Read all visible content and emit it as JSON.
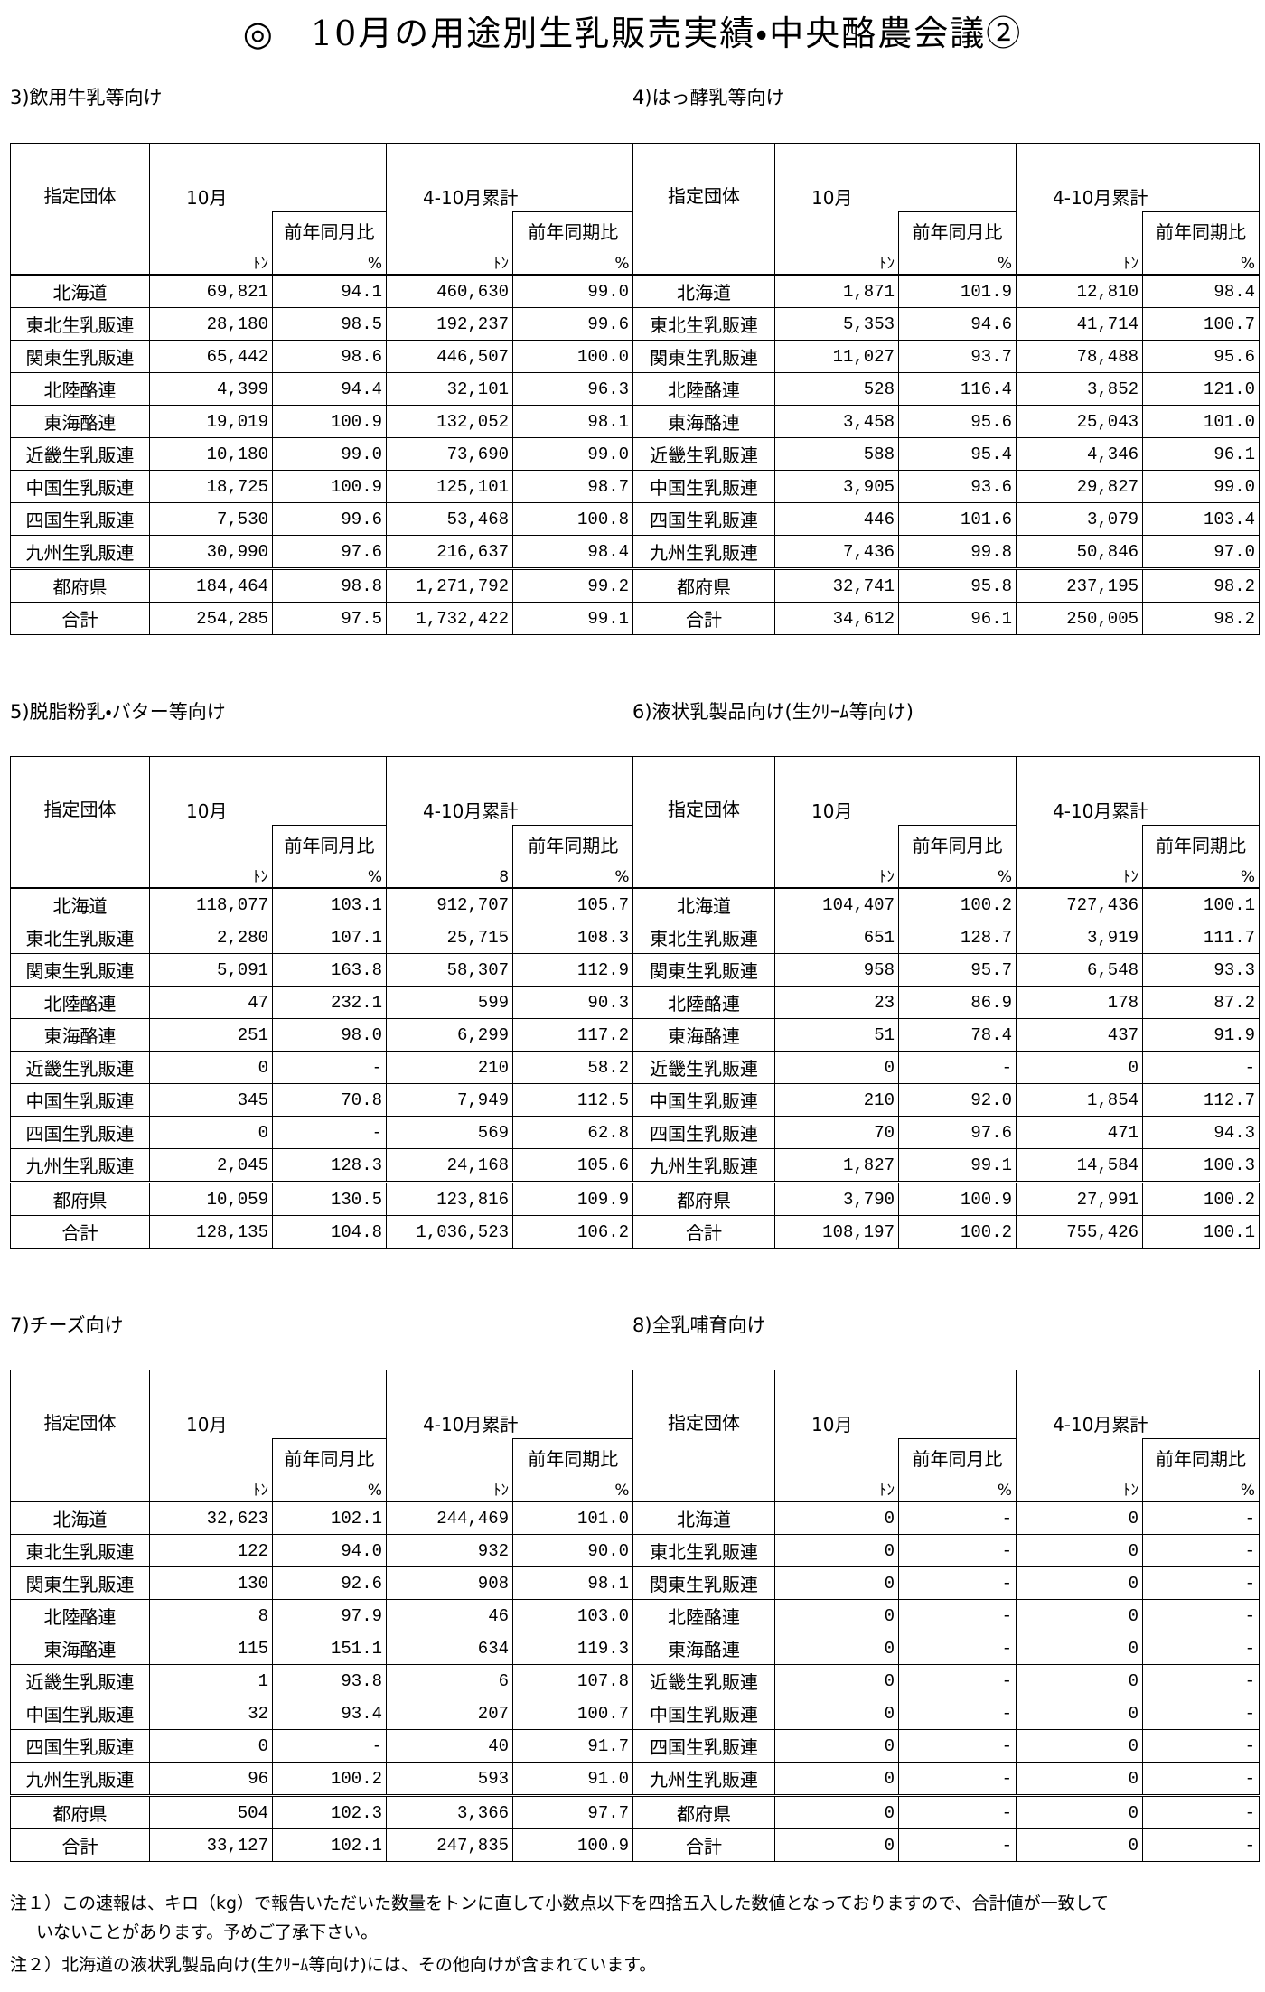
{
  "title": "◎　10月の用途別生乳販売実績・中央酪農会議②",
  "sections": [
    {
      "label": "3)飲用牛乳等向け",
      "header": [
        "指定団体",
        "10月",
        "4-10月累計",
        "前年同月比",
        "前年同期比"
      ],
      "units": [
        "ﾄﾝ",
        "%",
        "ﾄﾝ",
        "%"
      ],
      "rows": [
        [
          "北海道",
          "69,821",
          "94.1",
          "460,630",
          "99.0"
        ],
        [
          "東北生乳販連",
          "28,180",
          "98.5",
          "192,237",
          "99.6"
        ],
        [
          "関東生乳販連",
          "65,442",
          "98.6",
          "446,507",
          "100.0"
        ],
        [
          "北陸酪連",
          "4,399",
          "94.4",
          "32,101",
          "96.3"
        ],
        [
          "東海酪連",
          "19,019",
          "100.9",
          "132,052",
          "98.1"
        ],
        [
          "近畿生乳販連",
          "10,180",
          "99.0",
          "73,690",
          "99.0"
        ],
        [
          "中国生乳販連",
          "18,725",
          "100.9",
          "125,101",
          "98.7"
        ],
        [
          "四国生乳販連",
          "7,530",
          "99.6",
          "53,468",
          "100.8"
        ],
        [
          "九州生乳販連",
          "30,990",
          "97.6",
          "216,637",
          "98.4"
        ],
        [
          "都府県",
          "184,464",
          "98.8",
          "1,271,792",
          "99.2"
        ],
        [
          "合計",
          "254,285",
          "97.5",
          "1,732,422",
          "99.1"
        ]
      ]
    },
    {
      "label": "4)はっ酵乳等向け",
      "header": [
        "指定団体",
        "10月",
        "4-10月累計",
        "前年同月比",
        "前年同期比"
      ],
      "units": [
        "ﾄﾝ",
        "%",
        "ﾄﾝ",
        "%"
      ],
      "rows": [
        [
          "北海道",
          "1,871",
          "101.9",
          "12,810",
          "98.4"
        ],
        [
          "東北生乳販連",
          "5,353",
          "94.6",
          "41,714",
          "100.7"
        ],
        [
          "関東生乳販連",
          "11,027",
          "93.7",
          "78,488",
          "95.6"
        ],
        [
          "北陸酪連",
          "528",
          "116.4",
          "3,852",
          "121.0"
        ],
        [
          "東海酪連",
          "3,458",
          "95.6",
          "25,043",
          "101.0"
        ],
        [
          "近畿生乳販連",
          "588",
          "95.4",
          "4,346",
          "96.1"
        ],
        [
          "中国生乳販連",
          "3,905",
          "93.6",
          "29,827",
          "99.0"
        ],
        [
          "四国生乳販連",
          "446",
          "101.6",
          "3,079",
          "103.4"
        ],
        [
          "九州生乳販連",
          "7,436",
          "99.8",
          "50,846",
          "97.0"
        ],
        [
          "都府県",
          "32,741",
          "95.8",
          "237,195",
          "98.2"
        ],
        [
          "合計",
          "34,612",
          "96.1",
          "250,005",
          "98.2"
        ]
      ]
    },
    {
      "label": "5)脱脂粉乳・バター等向け",
      "header": [
        "指定団体",
        "10月",
        "4-10月累計",
        "前年同月比",
        "前年同期比"
      ],
      "units": [
        "ﾄﾝ",
        "%",
        "8",
        "%"
      ],
      "rows": [
        [
          "北海道",
          "118,077",
          "103.1",
          "912,707",
          "105.7"
        ],
        [
          "東北生乳販連",
          "2,280",
          "107.1",
          "25,715",
          "108.3"
        ],
        [
          "関東生乳販連",
          "5,091",
          "163.8",
          "58,307",
          "112.9"
        ],
        [
          "北陸酪連",
          "47",
          "232.1",
          "599",
          "90.3"
        ],
        [
          "東海酪連",
          "251",
          "98.0",
          "6,299",
          "117.2"
        ],
        [
          "近畿生乳販連",
          "0",
          "-",
          "210",
          "58.2"
        ],
        [
          "中国生乳販連",
          "345",
          "70.8",
          "7,949",
          "112.5"
        ],
        [
          "四国生乳販連",
          "0",
          "-",
          "569",
          "62.8"
        ],
        [
          "九州生乳販連",
          "2,045",
          "128.3",
          "24,168",
          "105.6"
        ],
        [
          "都府県",
          "10,059",
          "130.5",
          "123,816",
          "109.9"
        ],
        [
          "合計",
          "128,135",
          "104.8",
          "1,036,523",
          "106.2"
        ]
      ]
    },
    {
      "label": "6)液状乳製品向け(生ｸﾘｰﾑ等向け)",
      "header": [
        "指定団体",
        "10月",
        "4-10月累計",
        "前年同月比",
        "前年同期比"
      ],
      "units": [
        "ﾄﾝ",
        "%",
        "ﾄﾝ",
        "%"
      ],
      "rows": [
        [
          "北海道",
          "104,407",
          "100.2",
          "727,436",
          "100.1"
        ],
        [
          "東北生乳販連",
          "651",
          "128.7",
          "3,919",
          "111.7"
        ],
        [
          "関東生乳販連",
          "958",
          "95.7",
          "6,548",
          "93.3"
        ],
        [
          "北陸酪連",
          "23",
          "86.9",
          "178",
          "87.2"
        ],
        [
          "東海酪連",
          "51",
          "78.4",
          "437",
          "91.9"
        ],
        [
          "近畿生乳販連",
          "0",
          "-",
          "0",
          "-"
        ],
        [
          "中国生乳販連",
          "210",
          "92.0",
          "1,854",
          "112.7"
        ],
        [
          "四国生乳販連",
          "70",
          "97.6",
          "471",
          "94.3"
        ],
        [
          "九州生乳販連",
          "1,827",
          "99.1",
          "14,584",
          "100.3"
        ],
        [
          "都府県",
          "3,790",
          "100.9",
          "27,991",
          "100.2"
        ],
        [
          "合計",
          "108,197",
          "100.2",
          "755,426",
          "100.1"
        ]
      ]
    },
    {
      "label": "7)チーズ向け",
      "header": [
        "指定団体",
        "10月",
        "4-10月累計",
        "前年同月比",
        "前年同期比"
      ],
      "units": [
        "ﾄﾝ",
        "%",
        "ﾄﾝ",
        "%"
      ],
      "rows": [
        [
          "北海道",
          "32,623",
          "102.1",
          "244,469",
          "101.0"
        ],
        [
          "東北生乳販連",
          "122",
          "94.0",
          "932",
          "90.0"
        ],
        [
          "関東生乳販連",
          "130",
          "92.6",
          "908",
          "98.1"
        ],
        [
          "北陸酪連",
          "8",
          "97.9",
          "46",
          "103.0"
        ],
        [
          "東海酪連",
          "115",
          "151.1",
          "634",
          "119.3"
        ],
        [
          "近畿生乳販連",
          "1",
          "93.8",
          "6",
          "107.8"
        ],
        [
          "中国生乳販連",
          "32",
          "93.4",
          "207",
          "100.7"
        ],
        [
          "四国生乳販連",
          "0",
          "-",
          "40",
          "91.7"
        ],
        [
          "九州生乳販連",
          "96",
          "100.2",
          "593",
          "91.0"
        ],
        [
          "都府県",
          "504",
          "102.3",
          "3,366",
          "97.7"
        ],
        [
          "合計",
          "33,127",
          "102.1",
          "247,835",
          "100.9"
        ]
      ]
    },
    {
      "label": "8)全乳哺育向け",
      "header": [
        "指定団体",
        "10月",
        "4-10月累計",
        "前年同月比",
        "前年同期比"
      ],
      "units": [
        "ﾄﾝ",
        "%",
        "ﾄﾝ",
        "%"
      ],
      "rows": [
        [
          "北海道",
          "0",
          "-",
          "0",
          "-"
        ],
        [
          "東北生乳販連",
          "0",
          "-",
          "0",
          "-"
        ],
        [
          "関東生乳販連",
          "0",
          "-",
          "0",
          "-"
        ],
        [
          "北陸酪連",
          "0",
          "-",
          "0",
          "-"
        ],
        [
          "東海酪連",
          "0",
          "-",
          "0",
          "-"
        ],
        [
          "近畿生乳販連",
          "0",
          "-",
          "0",
          "-"
        ],
        [
          "中国生乳販連",
          "0",
          "-",
          "0",
          "-"
        ],
        [
          "四国生乳販連",
          "0",
          "-",
          "0",
          "-"
        ],
        [
          "九州生乳販連",
          "0",
          "-",
          "0",
          "-"
        ],
        [
          "都府県",
          "0",
          "-",
          "0",
          "-"
        ],
        [
          "合計",
          "0",
          "-",
          "0",
          "-"
        ]
      ]
    }
  ],
  "notes": [
    "注１）この速報は、キロ（kg）で報告いただいた数量をトンに直して小数点以下を四捨五入した数値となっておりますので、合計値が一致して",
    "いないことがあります。予めご了承下さい。",
    "注２）北海道の液状乳製品向け(生ｸﾘｰﾑ等向け)には、その他向けが含まれています。"
  ]
}
